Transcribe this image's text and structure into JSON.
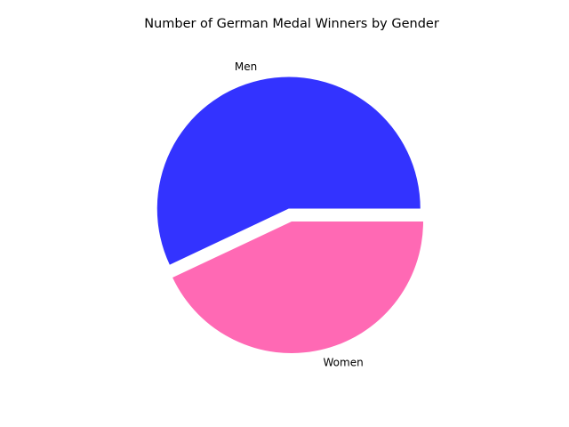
{
  "chart_data": {
    "type": "pie",
    "title": "Number of German Medal Winners by Gender",
    "slices": [
      {
        "label": "Men",
        "value": 57,
        "color": "#3333ff",
        "explode": 0.1
      },
      {
        "label": "Women",
        "value": 43,
        "color": "#ff69b4",
        "explode": 0.0
      }
    ],
    "start_angle_deg": 0,
    "direction": "counterclockwise",
    "legend": "none"
  }
}
